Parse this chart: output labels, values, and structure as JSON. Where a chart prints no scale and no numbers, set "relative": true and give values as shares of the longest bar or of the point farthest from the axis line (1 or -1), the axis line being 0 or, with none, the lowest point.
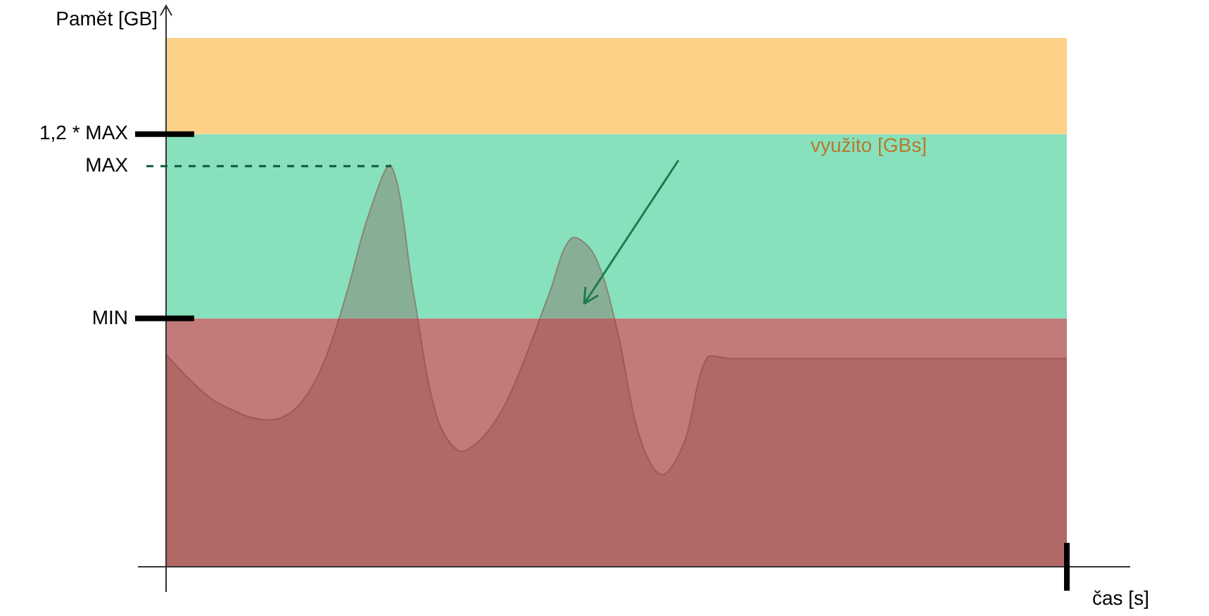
{
  "chart_data": {
    "type": "area",
    "relative": true,
    "xlabel": "čas [s]",
    "categories": [
      null,
      null,
      null,
      null,
      null,
      null,
      null,
      null,
      null,
      null,
      null,
      null,
      null,
      null,
      null,
      null,
      null,
      null,
      null,
      null,
      null,
      null,
      null,
      null,
      null,
      null,
      null,
      null,
      null,
      null,
      null,
      null,
      null,
      null,
      null,
      null,
      null,
      null,
      null,
      null,
      null
    ],
    "series": [
      {
        "color": "#8b3a3a",
        "values": [
          0.53,
          0.47,
          0.42,
          0.39,
          0.37,
          0.37,
          0.41,
          0.51,
          0.68,
          0.88,
          1.0,
          0.68,
          0.38,
          0.29,
          0.32,
          0.4,
          0.53,
          0.68,
          0.82,
          0.78,
          0.6,
          0.33,
          0.23,
          0.31,
          0.52,
          0.52,
          0.52,
          0.52,
          0.52,
          0.52,
          0.52,
          0.52,
          0.52,
          0.52,
          0.52,
          0.52,
          0.52,
          0.52,
          0.52,
          0.52,
          0.52
        ]
      }
    ],
    "bands": [
      {
        "axis": "y",
        "from": 0,
        "to": 0.62,
        "color": "#c27b7a"
      },
      {
        "axis": "y",
        "from": 0.62,
        "to": 1.08,
        "color": "#87e1bd"
      },
      {
        "axis": "y",
        "from": 1.08,
        "to": 1.32,
        "color": "#fdd188"
      }
    ],
    "ref_lines": [
      {
        "axis": "y",
        "value": 1.08,
        "label": "1,2 * MAX",
        "line_style": "solid"
      },
      {
        "axis": "y",
        "value": 1.0,
        "label": "MAX",
        "line_style": "dashed"
      },
      {
        "axis": "y",
        "value": 0.62,
        "label": "MIN",
        "line_style": "solid"
      }
    ],
    "annotations": [
      "Pamět [GB]",
      "využito [GBs]"
    ],
    "legend": false
  }
}
